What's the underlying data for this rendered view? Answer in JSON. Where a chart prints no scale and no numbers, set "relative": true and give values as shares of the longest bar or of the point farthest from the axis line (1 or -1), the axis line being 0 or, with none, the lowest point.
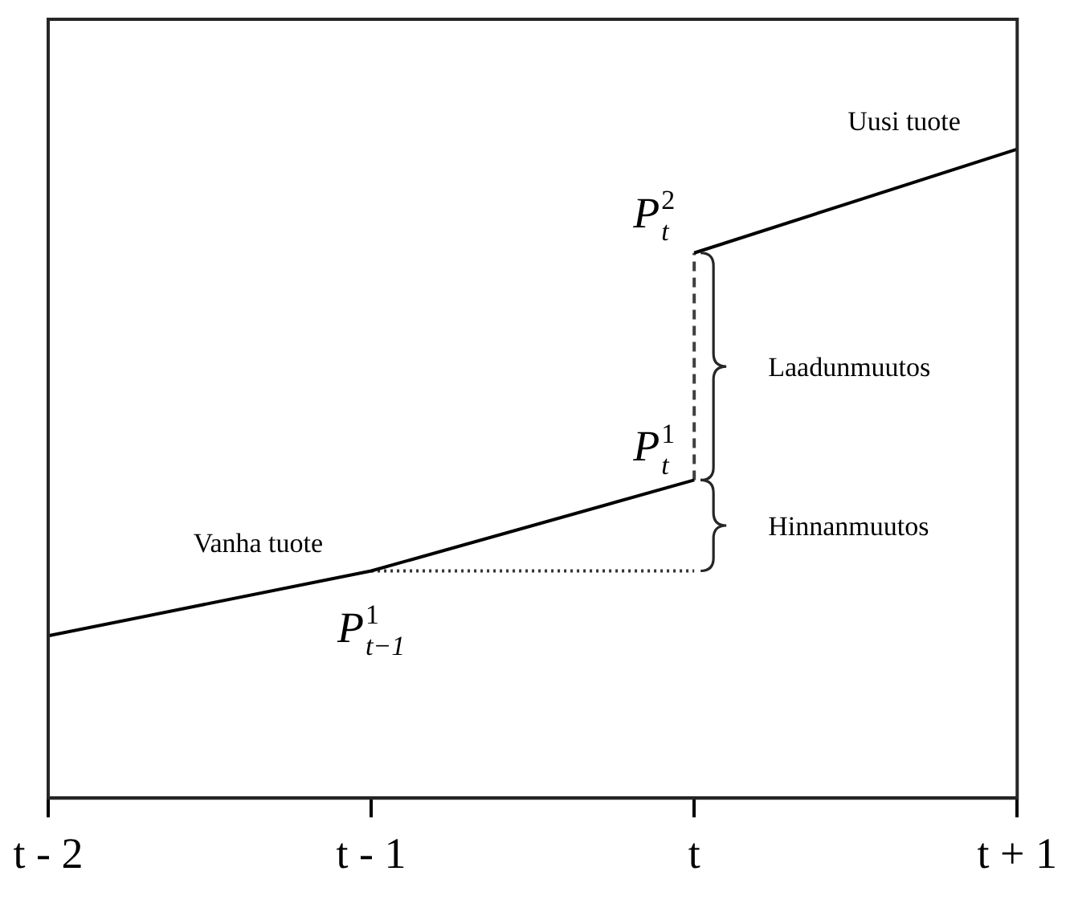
{
  "chart_data": {
    "type": "line",
    "relative": true,
    "categories": [
      "t - 2",
      "t - 1",
      "t",
      "t + 1"
    ],
    "series": [
      {
        "name": "Vanha tuote",
        "color": "#000000",
        "values": [
          0.25,
          0.35,
          0.49,
          null
        ]
      },
      {
        "name": "Uusi tuote",
        "color": "#000000",
        "values": [
          null,
          null,
          0.84,
          1.0
        ]
      },
      {
        "type": "line",
        "color": "#333333",
        "x": [
          "t - 1",
          "t"
        ],
        "values": [
          0.35,
          0.35
        ],
        "line_style": "dotted"
      },
      {
        "type": "line",
        "color": "#404040",
        "x": [
          "t",
          "t"
        ],
        "values": [
          0.49,
          0.84
        ],
        "line_style": "dashed"
      }
    ],
    "annotations": [
      {
        "text": "P$_{t}$$^{2}$",
        "x": "t",
        "y": 0.84
      },
      {
        "text": "P$_{t}$$^{1}$",
        "x": "t",
        "y": 0.49
      },
      {
        "text": "P$_{t−1}$$^{1}$",
        "x": "t - 1",
        "y": 0.35
      },
      "Laadunmuutos",
      "Hinnanmuutos"
    ],
    "marker": "none",
    "line_style": "solid",
    "grid": false,
    "legend": false
  }
}
